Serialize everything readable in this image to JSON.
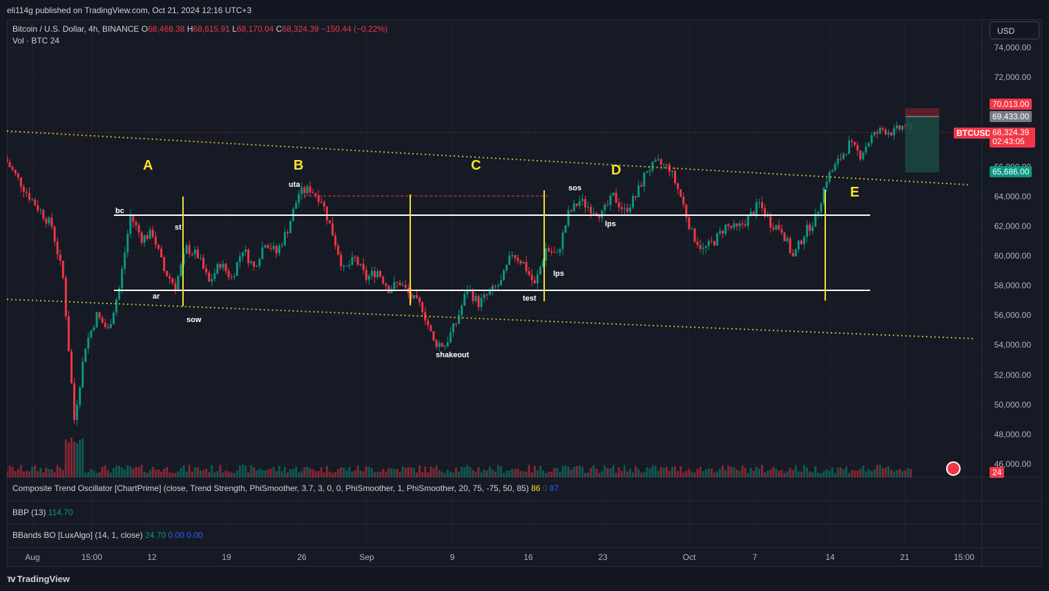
{
  "header": {
    "published": "eli114g published on TradingView.com, Oct 21, 2024 12:16 UTC+3"
  },
  "legend": {
    "symbol": "Bitcoin / U.S. Dollar, 4h, BINANCE",
    "o_label": "O",
    "o": "68,468.38",
    "h_label": "H",
    "h": "68,615.91",
    "l_label": "L",
    "l": "68,170.04",
    "c_label": "C",
    "c": "68,324.39",
    "change": "−150.44 (−0.22%)",
    "vol_label": "Vol · BTC",
    "vol_value": "24"
  },
  "currency_button": "USD",
  "y_axis": [
    "74,000.00",
    "72,000.00",
    "66,000.00",
    "64,000.00",
    "62,000.00",
    "60,000.00",
    "58,000.00",
    "56,000.00",
    "54,000.00",
    "52,000.00",
    "50,000.00",
    "48,000.00",
    "46,000.00"
  ],
  "price_tags": {
    "stop": "70,013.00",
    "entry": "69,433.00",
    "symbol_tag": "BTCUSD",
    "last_price": "68,324.39",
    "countdown": "02:43:05",
    "target": "65,686.00",
    "volume_tag": "24"
  },
  "x_axis": [
    "Aug",
    "15:00",
    "12",
    "19",
    "26",
    "Sep",
    "9",
    "16",
    "23",
    "Oct",
    "7",
    "14",
    "21",
    "15:00"
  ],
  "annotations": {
    "phases": [
      "A",
      "B",
      "C",
      "D",
      "E"
    ],
    "events": [
      "bc",
      "st",
      "ar",
      "sow",
      "uta",
      "shakeout",
      "test",
      "sos",
      "lps",
      "lps"
    ]
  },
  "indicators": {
    "cto_label": "Composite Trend Oscillator [ChartPrime] (close, Trend Strength, PhiSmoother, 3.7, 3, 0, 0, PhiSmoother, 1, PhiSmoother, 20, 75, -75, 50, 85)",
    "cto_v1": "86",
    "cto_v2": "0",
    "cto_v3": "87",
    "bbp_label": "BBP (13)",
    "bbp_value": "114.70",
    "bbands_label": "BBands BO [LuxAlgo] (14, 1, close)",
    "bbands_v1": "24.70",
    "bbands_v2": "0.00",
    "bbands_v3": "0.00"
  },
  "footer": {
    "brand": "TradingView"
  },
  "colors": {
    "up": "#089981",
    "down": "#f23645",
    "annotation": "#f7e32a",
    "background": "#161a25"
  },
  "chart_data": {
    "type": "candlestick",
    "y_unit": "USD",
    "ylim": [
      45500,
      75500
    ],
    "range_levels": [
      62700,
      57700
    ],
    "resistance_dotted": [
      64100
    ],
    "close_path": [
      [
        0,
        66300
      ],
      [
        4,
        64000
      ],
      [
        8,
        62000
      ],
      [
        10,
        58500
      ],
      [
        12,
        49000
      ],
      [
        14,
        54000
      ],
      [
        16,
        56000
      ],
      [
        18,
        55000
      ],
      [
        20,
        57800
      ],
      [
        22,
        62700
      ],
      [
        24,
        61200
      ],
      [
        26,
        61500
      ],
      [
        28,
        59000
      ],
      [
        30,
        58000
      ],
      [
        32,
        60500
      ],
      [
        34,
        60000
      ],
      [
        36,
        58200
      ],
      [
        38,
        59500
      ],
      [
        40,
        58500
      ],
      [
        42,
        60500
      ],
      [
        44,
        59200
      ],
      [
        46,
        61000
      ],
      [
        48,
        60200
      ],
      [
        50,
        61800
      ],
      [
        52,
        64200
      ],
      [
        54,
        64500
      ],
      [
        56,
        63800
      ],
      [
        58,
        61500
      ],
      [
        60,
        59000
      ],
      [
        62,
        59800
      ],
      [
        64,
        58500
      ],
      [
        66,
        59000
      ],
      [
        68,
        57800
      ],
      [
        70,
        58200
      ],
      [
        72,
        57200
      ],
      [
        74,
        56500
      ],
      [
        76,
        54200
      ],
      [
        78,
        54000
      ],
      [
        80,
        55500
      ],
      [
        82,
        57800
      ],
      [
        84,
        56800
      ],
      [
        86,
        57500
      ],
      [
        88,
        58200
      ],
      [
        90,
        60200
      ],
      [
        92,
        59500
      ],
      [
        94,
        58000
      ],
      [
        96,
        60500
      ],
      [
        98,
        60000
      ],
      [
        100,
        62800
      ],
      [
        102,
        63700
      ],
      [
        104,
        63200
      ],
      [
        106,
        62800
      ],
      [
        108,
        64000
      ],
      [
        110,
        63000
      ],
      [
        112,
        64000
      ],
      [
        114,
        65800
      ],
      [
        116,
        66200
      ],
      [
        118,
        65900
      ],
      [
        120,
        64000
      ],
      [
        122,
        61500
      ],
      [
        124,
        60400
      ],
      [
        126,
        61000
      ],
      [
        128,
        62000
      ],
      [
        130,
        61800
      ],
      [
        132,
        62500
      ],
      [
        134,
        63500
      ],
      [
        136,
        62200
      ],
      [
        138,
        61800
      ],
      [
        140,
        59900
      ],
      [
        142,
        61500
      ],
      [
        144,
        62500
      ],
      [
        146,
        65200
      ],
      [
        148,
        66300
      ],
      [
        150,
        67500
      ],
      [
        152,
        66800
      ],
      [
        154,
        68000
      ],
      [
        156,
        68500
      ],
      [
        158,
        68300
      ],
      [
        160,
        68800
      ],
      [
        161,
        68324
      ]
    ]
  }
}
